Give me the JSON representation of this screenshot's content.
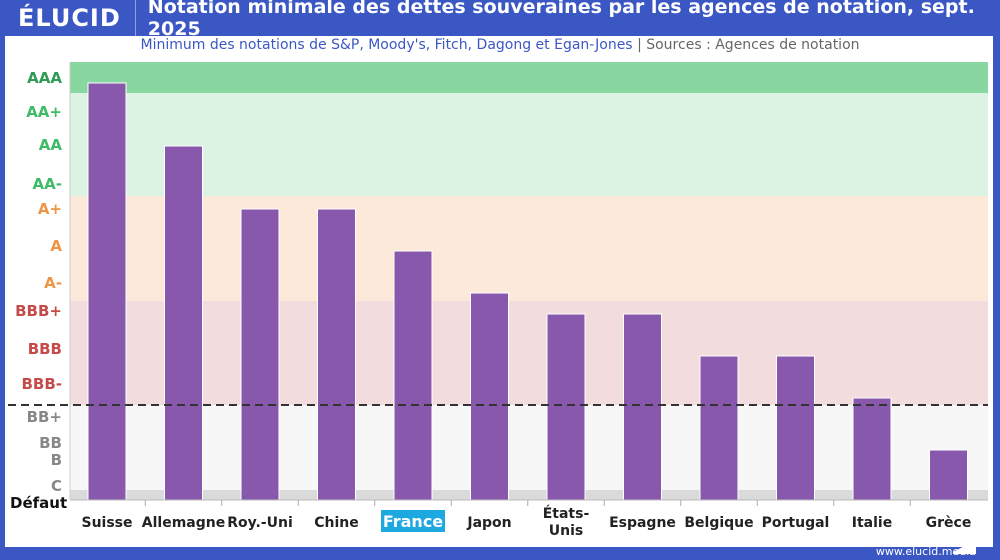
{
  "header": {
    "logo": "ÉLUCID",
    "title": "Notation minimale des dettes souveraines par les agences de notation, sept. 2025"
  },
  "subtitle": "Minimum des notations de S&P, Moody's, Fitch, Dagong et Egan-Jones",
  "separator": "|",
  "sources": "Sources : Agences de notation",
  "footer": "www.elucid.media",
  "colors": {
    "bar": "#8758ab",
    "highlight": "#1ea8e0",
    "frame": "#3b57c4"
  },
  "chart_data": {
    "type": "bar",
    "categories": [
      "Suisse",
      "Allemagne",
      "Roy.-Uni",
      "Chine",
      "France",
      "Japon",
      "États-Unis",
      "Espagne",
      "Belgique",
      "Portugal",
      "Italie",
      "Grèce"
    ],
    "values": [
      "AAA",
      "AA",
      "A+",
      "A+",
      "A",
      "A-",
      "BBB+",
      "BBB+",
      "BBB",
      "BBB",
      "BBB-",
      "BB"
    ],
    "highlight_category": "France",
    "y_ticks": [
      {
        "label": "AAA",
        "color": "#2e9a55"
      },
      {
        "label": "AA+",
        "color": "#3dbb66"
      },
      {
        "label": "AA",
        "color": "#3dbb66"
      },
      {
        "label": "AA-",
        "color": "#3dbb66"
      },
      {
        "label": "A+",
        "color": "#ee9445"
      },
      {
        "label": "A",
        "color": "#ee9445"
      },
      {
        "label": "A-",
        "color": "#ee9445"
      },
      {
        "label": "BBB+",
        "color": "#c54a4a"
      },
      {
        "label": "BBB",
        "color": "#c54a4a"
      },
      {
        "label": "BBB-",
        "color": "#c54a4a"
      },
      {
        "label": "BB+",
        "color": "#888888"
      },
      {
        "label": "BB",
        "color": "#888888"
      },
      {
        "label": "B",
        "color": "#888888"
      },
      {
        "label": "C",
        "color": "#888888"
      },
      {
        "label": "Défaut",
        "color": "#111111"
      }
    ],
    "bands": [
      {
        "name": "AAA",
        "color": "#88d6a0"
      },
      {
        "name": "AA",
        "color": "#dcf2e2"
      },
      {
        "name": "A",
        "color": "#fde9d9"
      },
      {
        "name": "BBB",
        "color": "#f2dcdd"
      },
      {
        "name": "speculative",
        "color": "#f7f7f7"
      },
      {
        "name": "default",
        "color": "#dadada"
      }
    ],
    "investment_grade_line": "dashed, between BBB- and BB+"
  }
}
